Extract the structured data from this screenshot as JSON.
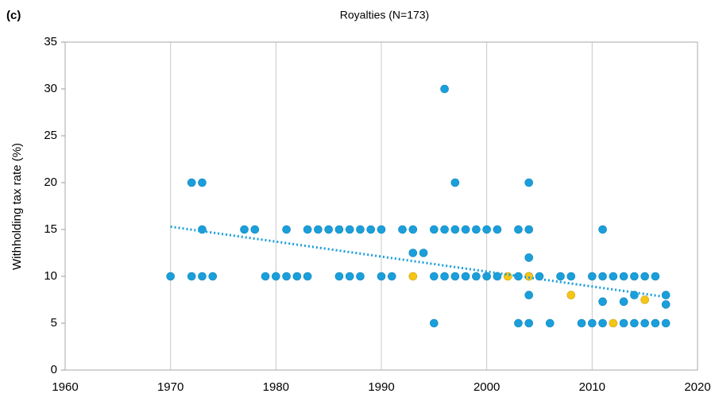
{
  "chart_data": {
    "type": "scatter",
    "panel_label": "(c)",
    "title": "Royalties (N=173)",
    "y_label": "Withholding tax rate (%)",
    "xlim": [
      1960,
      2020
    ],
    "xticks": [
      1960,
      1970,
      1980,
      1990,
      2000,
      2010,
      2020
    ],
    "ylim": [
      0,
      35
    ],
    "yticks": [
      0,
      5,
      10,
      15,
      20,
      25,
      30,
      35
    ],
    "grid": true,
    "series": [
      {
        "color": "#1a9fdb",
        "x": [
          1970,
          1972,
          1973,
          1973,
          1972,
          1973,
          1974,
          1977,
          1978,
          1979,
          1980,
          1981,
          1982,
          1983,
          1981,
          1983,
          1984,
          1985,
          1986,
          1987,
          1988,
          1989,
          1990,
          1986,
          1987,
          1988,
          1990,
          1991,
          1992,
          1993,
          1993,
          1994,
          1995,
          1995,
          1996,
          1996,
          1997,
          1997,
          1998,
          1999,
          2000,
          2001,
          1995,
          1996,
          1997,
          1998,
          1999,
          2000,
          2001,
          2003,
          2004,
          2004,
          2004,
          2004,
          2003,
          2004,
          2005,
          2003,
          2004,
          2006,
          2007,
          2008,
          2009,
          2010,
          2010,
          2011,
          2011,
          2011,
          2011,
          2012,
          2013,
          2013,
          2013,
          2014,
          2014,
          2014,
          2015,
          2015,
          2016,
          2016,
          2017,
          2017,
          2017
        ],
        "values": [
          10,
          20,
          20,
          15,
          10,
          10,
          10,
          15,
          15,
          10,
          10,
          10,
          10,
          10,
          15,
          15,
          15,
          15,
          15,
          15,
          15,
          15,
          15,
          10,
          10,
          10,
          10,
          10,
          15,
          15,
          12.5,
          12.5,
          5,
          15,
          30,
          15,
          20,
          15,
          15,
          15,
          15,
          15,
          10,
          10,
          10,
          10,
          10,
          10,
          10,
          15,
          15,
          20,
          12,
          8,
          10,
          10,
          10,
          5,
          5,
          5,
          10,
          10,
          5,
          5,
          10,
          15,
          10,
          7.3,
          5,
          10,
          10,
          7.3,
          5,
          10,
          8,
          5,
          10,
          5,
          10,
          5,
          8,
          7,
          5
        ]
      },
      {
        "color": "#f5c518",
        "x": [
          1993,
          2002,
          2004,
          2008,
          2012,
          2015
        ],
        "values": [
          10,
          10,
          10,
          8,
          5,
          7.5
        ]
      }
    ],
    "trendline": {
      "color": "#1a9fdb",
      "x": [
        1970,
        2017
      ],
      "y": [
        15.3,
        7.8
      ]
    }
  }
}
